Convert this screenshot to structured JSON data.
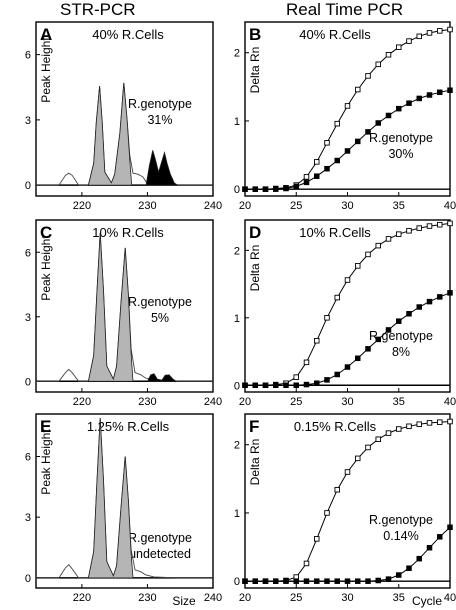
{
  "header": {
    "left_title": "STR-PCR",
    "right_title": "Real Time PCR"
  },
  "chart_data": [
    {
      "panel": "A",
      "type": "area",
      "annotation": "40% R.Cells",
      "label_top": "R.genotype",
      "label_bottom": "31%",
      "ylabel": "Peak Height",
      "xlabel": "",
      "xlim": [
        213,
        240
      ],
      "ylim": [
        -0.5,
        7.5
      ],
      "xticks": [
        "220",
        "230",
        "240"
      ],
      "yticks": [
        "0",
        "3",
        "6"
      ],
      "series": [
        {
          "role": "outline",
          "x": [
            213,
            216.5,
            217.5,
            218,
            218.5,
            219.5,
            221,
            221.8,
            222.2,
            222.7,
            223.1,
            223.5,
            224.5,
            225,
            225.8,
            226.4,
            226.9,
            227.3,
            227.8,
            228.6,
            229.3,
            229.8,
            231,
            232,
            233,
            234,
            235,
            240
          ],
          "values": [
            0,
            0,
            0.45,
            0.55,
            0.45,
            0,
            0,
            1,
            2.9,
            4.55,
            2.9,
            0.6,
            0.1,
            0.5,
            2.4,
            4.7,
            3.0,
            1.4,
            0.55,
            0.5,
            0.38,
            0.15,
            0.1,
            0.05,
            0.02,
            0,
            0,
            0
          ]
        },
        {
          "role": "reference",
          "color": "#b5b5b5",
          "x": [
            221,
            221.8,
            222.2,
            222.7,
            223.1,
            223.5,
            224.5,
            225,
            225.8,
            226.4,
            226.9,
            227.3,
            227.6
          ],
          "values": [
            0,
            1,
            2.9,
            4.55,
            2.9,
            0.6,
            0.1,
            0.5,
            2.4,
            4.7,
            3.0,
            1.2,
            0
          ]
        },
        {
          "role": "variant",
          "color": "#000000",
          "x": [
            229.8,
            230.3,
            230.8,
            231.2,
            231.7,
            232.1,
            232.6,
            233,
            233.5,
            234.1,
            234.6
          ],
          "values": [
            0,
            0.9,
            1.6,
            1.2,
            0.6,
            1.0,
            1.5,
            1.0,
            0.5,
            0.1,
            0
          ]
        }
      ]
    },
    {
      "panel": "B",
      "type": "line",
      "annotation": "40% R.Cells",
      "label_top": "R.genotype",
      "label_bottom": "30%",
      "ylabel": "Delta Rn",
      "xlabel": "",
      "xlim": [
        20,
        40
      ],
      "ylim": [
        -0.1,
        2.45
      ],
      "xticks": [
        "20",
        "25",
        "30",
        "35",
        "40"
      ],
      "yticks": [
        "0",
        "1",
        "2"
      ],
      "series": [
        {
          "role": "reference",
          "marker": "open",
          "x": [
            20,
            21,
            22,
            23,
            24,
            25,
            26,
            27,
            28,
            29,
            30,
            31,
            32,
            33,
            34,
            35,
            36,
            37,
            38,
            39,
            40
          ],
          "values": [
            0,
            0,
            0,
            0.01,
            0.02,
            0.06,
            0.18,
            0.4,
            0.68,
            0.96,
            1.22,
            1.46,
            1.66,
            1.83,
            1.97,
            2.08,
            2.17,
            2.24,
            2.29,
            2.32,
            2.34
          ]
        },
        {
          "role": "variant",
          "marker": "filled",
          "x": [
            20,
            21,
            22,
            23,
            24,
            25,
            26,
            27,
            28,
            29,
            30,
            31,
            32,
            33,
            34,
            35,
            36,
            37,
            38,
            39,
            40
          ],
          "values": [
            0,
            0,
            0,
            0,
            0.01,
            0.04,
            0.1,
            0.19,
            0.3,
            0.42,
            0.56,
            0.7,
            0.84,
            0.97,
            1.08,
            1.18,
            1.26,
            1.33,
            1.38,
            1.42,
            1.45
          ]
        }
      ]
    },
    {
      "panel": "C",
      "type": "area",
      "annotation": "10% R.Cells",
      "label_top": "R.genotype",
      "label_bottom": "5%",
      "ylabel": "Peak Height",
      "xlabel": "",
      "xlim": [
        213,
        240
      ],
      "ylim": [
        -0.5,
        7.5
      ],
      "xticks": [
        "220",
        "230",
        "240"
      ],
      "yticks": [
        "0",
        "3",
        "6"
      ],
      "series": [
        {
          "role": "outline",
          "x": [
            213,
            216.5,
            217.5,
            218,
            218.5,
            219.5,
            221,
            221.8,
            222.3,
            222.8,
            223.3,
            223.8,
            224.8,
            225.3,
            226,
            226.6,
            227.1,
            227.5,
            228.1,
            229,
            229.7,
            231,
            233,
            235,
            240
          ],
          "values": [
            0,
            0,
            0.4,
            0.55,
            0.4,
            0,
            0,
            1.2,
            4.2,
            6.9,
            4.2,
            0.7,
            0.1,
            0.7,
            3.8,
            6.2,
            4.0,
            1.5,
            0.4,
            0.3,
            0.15,
            0.05,
            0.02,
            0,
            0
          ]
        },
        {
          "role": "reference",
          "color": "#b5b5b5",
          "x": [
            221,
            221.8,
            222.3,
            222.8,
            223.3,
            223.8,
            224.8,
            225.3,
            226,
            226.6,
            227.1,
            227.5,
            227.8
          ],
          "values": [
            0,
            1.2,
            4.2,
            6.9,
            4.2,
            0.7,
            0.1,
            0.7,
            3.8,
            6.2,
            4.0,
            1.3,
            0
          ]
        },
        {
          "role": "variant",
          "color": "#000000",
          "x": [
            230,
            230.5,
            231,
            231.5,
            232.2,
            232.7,
            233.3,
            233.9,
            234.4
          ],
          "values": [
            0,
            0.3,
            0.35,
            0.1,
            0.05,
            0.28,
            0.3,
            0.1,
            0
          ]
        }
      ]
    },
    {
      "panel": "D",
      "type": "line",
      "annotation": "10% R.Cells",
      "label_top": "R.genotype",
      "label_bottom": "8%",
      "ylabel": "Delta Rn",
      "xlabel": "",
      "xlim": [
        20,
        40
      ],
      "ylim": [
        -0.1,
        2.45
      ],
      "xticks": [
        "20",
        "25",
        "30",
        "35",
        "40"
      ],
      "yticks": [
        "0",
        "1",
        "2"
      ],
      "series": [
        {
          "role": "reference",
          "marker": "open",
          "x": [
            20,
            21,
            22,
            23,
            24,
            25,
            26,
            27,
            28,
            29,
            30,
            31,
            32,
            33,
            34,
            35,
            36,
            37,
            38,
            39,
            40
          ],
          "values": [
            0,
            0,
            0,
            0.01,
            0.03,
            0.12,
            0.34,
            0.66,
            1.0,
            1.3,
            1.56,
            1.77,
            1.94,
            2.07,
            2.17,
            2.24,
            2.29,
            2.33,
            2.36,
            2.38,
            2.4
          ]
        },
        {
          "role": "variant",
          "marker": "filled",
          "x": [
            20,
            21,
            22,
            23,
            24,
            25,
            26,
            27,
            28,
            29,
            30,
            31,
            32,
            33,
            34,
            35,
            36,
            37,
            38,
            39,
            40
          ],
          "values": [
            0,
            0,
            0,
            0,
            0,
            0,
            0.01,
            0.03,
            0.08,
            0.16,
            0.27,
            0.4,
            0.54,
            0.68,
            0.82,
            0.95,
            1.06,
            1.16,
            1.24,
            1.31,
            1.37
          ]
        }
      ]
    },
    {
      "panel": "E",
      "type": "area",
      "annotation": "1.25% R.Cells",
      "label_top": "R.genotype",
      "label_bottom": "undetected",
      "ylabel": "Peak Height",
      "xlabel": "Size",
      "xlim": [
        213,
        240
      ],
      "ylim": [
        -0.5,
        8.1
      ],
      "xticks": [
        "220",
        "230",
        "240"
      ],
      "yticks": [
        "0",
        "3",
        "6"
      ],
      "series": [
        {
          "role": "outline",
          "x": [
            213,
            216.5,
            217.5,
            218,
            218.5,
            219.5,
            221,
            221.8,
            222.3,
            222.8,
            223.3,
            223.8,
            224.8,
            225.3,
            226,
            226.6,
            227.1,
            227.5,
            228.1,
            229,
            229.7,
            231,
            233,
            235,
            240
          ],
          "values": [
            0,
            0,
            0.5,
            0.65,
            0.45,
            0,
            0,
            1.3,
            4.8,
            7.9,
            4.8,
            0.8,
            0.1,
            0.6,
            3.6,
            6.0,
            3.8,
            1.4,
            0.4,
            0.3,
            0.15,
            0.05,
            0.02,
            0,
            0
          ]
        },
        {
          "role": "reference",
          "color": "#b5b5b5",
          "x": [
            221,
            221.8,
            222.3,
            222.8,
            223.3,
            223.8,
            224.8,
            225.3,
            226,
            226.6,
            227.1,
            227.5,
            227.8
          ],
          "values": [
            0,
            1.3,
            4.8,
            7.9,
            4.8,
            0.8,
            0.1,
            0.6,
            3.6,
            6.0,
            3.8,
            1.2,
            0
          ]
        }
      ]
    },
    {
      "panel": "F",
      "type": "line",
      "annotation": "0.15% R.Cells",
      "label_top": "R.genotype",
      "label_bottom": "0.14%",
      "ylabel": "Delta Rn",
      "xlabel": "Cycle",
      "xlim": [
        20,
        40
      ],
      "ylim": [
        -0.1,
        2.45
      ],
      "xticks": [
        "20",
        "25",
        "30",
        "35",
        "40"
      ],
      "yticks": [
        "0",
        "1",
        "2"
      ],
      "series": [
        {
          "role": "reference",
          "marker": "open",
          "x": [
            20,
            21,
            22,
            23,
            24,
            25,
            26,
            27,
            28,
            29,
            30,
            31,
            32,
            33,
            34,
            35,
            36,
            37,
            38,
            39,
            40
          ],
          "values": [
            0,
            0,
            0,
            0,
            0.01,
            0.06,
            0.26,
            0.62,
            1.0,
            1.34,
            1.6,
            1.8,
            1.96,
            2.08,
            2.17,
            2.23,
            2.27,
            2.3,
            2.32,
            2.33,
            2.34
          ]
        },
        {
          "role": "variant",
          "marker": "filled",
          "x": [
            20,
            21,
            22,
            23,
            24,
            25,
            26,
            27,
            28,
            29,
            30,
            31,
            32,
            33,
            34,
            35,
            36,
            37,
            38,
            39,
            40
          ],
          "values": [
            0,
            0,
            0,
            0,
            0,
            0,
            0,
            0,
            0,
            0,
            0,
            0,
            0,
            0.01,
            0.03,
            0.09,
            0.19,
            0.33,
            0.49,
            0.65,
            0.79
          ]
        }
      ]
    }
  ]
}
